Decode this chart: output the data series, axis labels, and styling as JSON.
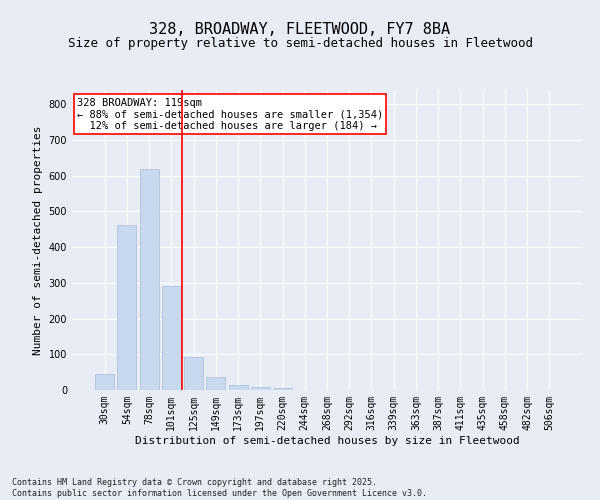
{
  "title": "328, BROADWAY, FLEETWOOD, FY7 8BA",
  "subtitle": "Size of property relative to semi-detached houses in Fleetwood",
  "xlabel": "Distribution of semi-detached houses by size in Fleetwood",
  "ylabel": "Number of semi-detached properties",
  "categories": [
    "30sqm",
    "54sqm",
    "78sqm",
    "101sqm",
    "125sqm",
    "149sqm",
    "173sqm",
    "197sqm",
    "220sqm",
    "244sqm",
    "268sqm",
    "292sqm",
    "316sqm",
    "339sqm",
    "363sqm",
    "387sqm",
    "411sqm",
    "435sqm",
    "458sqm",
    "482sqm",
    "506sqm"
  ],
  "values": [
    46,
    461,
    618,
    291,
    93,
    37,
    14,
    8,
    5,
    0,
    0,
    0,
    0,
    0,
    0,
    0,
    0,
    0,
    0,
    0,
    0
  ],
  "bar_color": "#c8d8ed",
  "bar_edge_color": "#aabbdd",
  "vline_x": 3.5,
  "vline_color": "red",
  "annotation_text": "328 BROADWAY: 119sqm\n← 88% of semi-detached houses are smaller (1,354)\n  12% of semi-detached houses are larger (184) →",
  "annotation_box_color": "white",
  "annotation_box_edge_color": "red",
  "ylim": [
    0,
    840
  ],
  "yticks": [
    0,
    100,
    200,
    300,
    400,
    500,
    600,
    700,
    800
  ],
  "bg_color": "#e8edf5",
  "plot_bg_color": "#e8edf5",
  "grid_color": "white",
  "footer": "Contains HM Land Registry data © Crown copyright and database right 2025.\nContains public sector information licensed under the Open Government Licence v3.0.",
  "title_fontsize": 11,
  "subtitle_fontsize": 9,
  "axis_label_fontsize": 8,
  "tick_fontsize": 7,
  "annotation_fontsize": 7.5
}
